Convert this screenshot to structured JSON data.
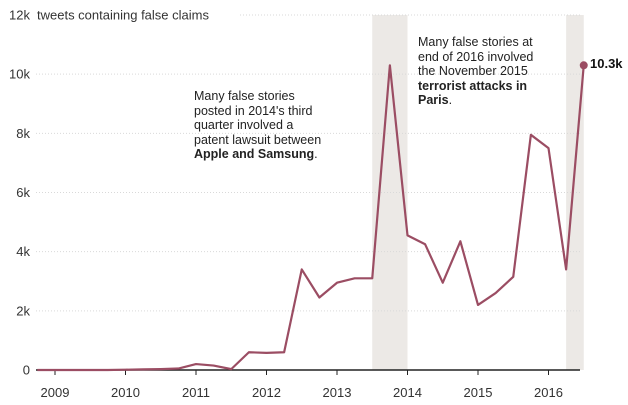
{
  "chart_data": {
    "type": "line",
    "ylabel": "tweets containing false claims",
    "yticks": [
      {
        "value": 0,
        "label": "0"
      },
      {
        "value": 2000,
        "label": "2k"
      },
      {
        "value": 4000,
        "label": "4k"
      },
      {
        "value": 6000,
        "label": "6k"
      },
      {
        "value": 8000,
        "label": "8k"
      },
      {
        "value": 10000,
        "label": "10k"
      },
      {
        "value": 12000,
        "label": "12k"
      }
    ],
    "xticks": [
      {
        "value": 2009,
        "label": "2009"
      },
      {
        "value": 2010,
        "label": "2010"
      },
      {
        "value": 2011,
        "label": "2011"
      },
      {
        "value": 2012,
        "label": "2012"
      },
      {
        "value": 2013,
        "label": "2013"
      },
      {
        "value": 2014,
        "label": "2014"
      },
      {
        "value": 2015,
        "label": "2015"
      },
      {
        "value": 2016,
        "label": "2016"
      }
    ],
    "xlim": [
      2008.8,
      2016.6
    ],
    "ylim": [
      0,
      12000
    ],
    "grid": true,
    "series": [
      {
        "color": "#9b4d63",
        "x": [
          2008.75,
          2009.0,
          2009.25,
          2009.5,
          2009.75,
          2010.0,
          2010.25,
          2010.5,
          2010.75,
          2011.0,
          2011.25,
          2011.5,
          2011.75,
          2012.0,
          2012.25,
          2012.5,
          2012.75,
          2013.0,
          2013.25,
          2013.5,
          2013.75,
          2014.0,
          2014.25,
          2014.5,
          2014.75,
          2015.0,
          2015.25,
          2015.5,
          2015.75,
          2016.0,
          2016.25,
          2016.5
        ],
        "y": [
          0,
          0,
          0,
          0,
          0,
          10,
          20,
          30,
          50,
          200,
          150,
          30,
          600,
          580,
          600,
          3400,
          2450,
          2950,
          3100,
          3100,
          10300,
          4550,
          4250,
          2950,
          4350,
          2200,
          2600,
          3150,
          7950,
          7500,
          3400,
          10300
        ]
      }
    ],
    "shaded_periods": [
      {
        "from": 2013.5,
        "to": 2014.0
      },
      {
        "from": 2016.25,
        "to": 2016.5
      }
    ],
    "end_label": "10.3k",
    "annotations": [
      {
        "lines": [
          "Many false stories",
          "posted in 2014's third",
          "quarter involved a",
          "patent lawsuit between"
        ],
        "bold": "Apple and Samsung",
        "after": "."
      },
      {
        "lines": [
          "Many false stories at",
          "end of 2016 involved",
          "the November 2015"
        ],
        "bold_lines": [
          "terrorist attacks in",
          "Paris"
        ],
        "after": "."
      }
    ]
  }
}
